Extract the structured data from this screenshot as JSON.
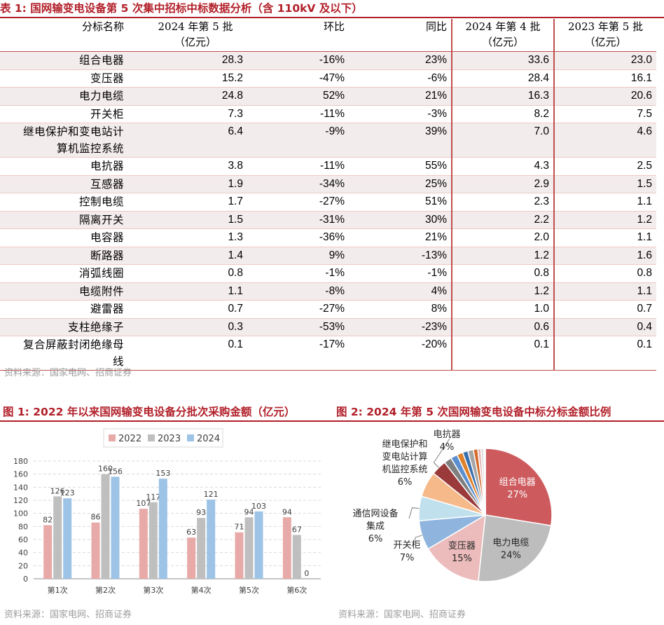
{
  "table1": {
    "title": "表 1: 国网输变电设备第 5 次集中招标中标数据分析（含 110kV 及以下）",
    "headers": {
      "name": "分标名称",
      "c1_line1": "2024 年第 5 批",
      "c1_line2": "（亿元）",
      "c2": "环比",
      "c3": "同比",
      "c4_line1": "2024 年第 4 批",
      "c4_line2": "（亿元）",
      "c5_line1": "2023 年第 5 批",
      "c5_line2": "（亿元）"
    },
    "rows": [
      {
        "name": "组合电器",
        "v2024b5": "28.3",
        "hb": "-16%",
        "tb": "23%",
        "v2024b4": "33.6",
        "v2023b5": "23.0"
      },
      {
        "name": "变压器",
        "v2024b5": "15.2",
        "hb": "-47%",
        "tb": "-6%",
        "v2024b4": "28.4",
        "v2023b5": "16.1"
      },
      {
        "name": "电力电缆",
        "v2024b5": "24.8",
        "hb": "52%",
        "tb": "21%",
        "v2024b4": "16.3",
        "v2023b5": "20.6"
      },
      {
        "name": "开关柜",
        "v2024b5": "7.3",
        "hb": "-11%",
        "tb": "-3%",
        "v2024b4": "8.2",
        "v2023b5": "7.5"
      },
      {
        "name": "继电保护和变电站计",
        "name2": "算机监控系统",
        "v2024b5": "6.4",
        "hb": "-9%",
        "tb": "39%",
        "v2024b4": "7.0",
        "v2023b5": "4.6"
      },
      {
        "name": "电抗器",
        "v2024b5": "3.8",
        "hb": "-11%",
        "tb": "55%",
        "v2024b4": "4.3",
        "v2023b5": "2.5"
      },
      {
        "name": "互感器",
        "v2024b5": "1.9",
        "hb": "-34%",
        "tb": "25%",
        "v2024b4": "2.9",
        "v2023b5": "1.5"
      },
      {
        "name": "控制电缆",
        "v2024b5": "1.7",
        "hb": "-27%",
        "tb": "51%",
        "v2024b4": "2.3",
        "v2023b5": "1.1"
      },
      {
        "name": "隔离开关",
        "v2024b5": "1.5",
        "hb": "-31%",
        "tb": "30%",
        "v2024b4": "2.2",
        "v2023b5": "1.2"
      },
      {
        "name": "电容器",
        "v2024b5": "1.3",
        "hb": "-36%",
        "tb": "21%",
        "v2024b4": "2.0",
        "v2023b5": "1.1"
      },
      {
        "name": "断路器",
        "v2024b5": "1.4",
        "hb": "9%",
        "tb": "-13%",
        "v2024b4": "1.2",
        "v2023b5": "1.6"
      },
      {
        "name": "消弧线圈",
        "v2024b5": "0.8",
        "hb": "-1%",
        "tb": "-1%",
        "v2024b4": "0.8",
        "v2023b5": "0.8"
      },
      {
        "name": "电缆附件",
        "v2024b5": "1.1",
        "hb": "-8%",
        "tb": "4%",
        "v2024b4": "1.2",
        "v2023b5": "1.1"
      },
      {
        "name": "避雷器",
        "v2024b5": "0.7",
        "hb": "-27%",
        "tb": "8%",
        "v2024b4": "1.0",
        "v2023b5": "0.7"
      },
      {
        "name": "支柱绝缘子",
        "v2024b5": "0.3",
        "hb": "-53%",
        "tb": "-23%",
        "v2024b4": "0.6",
        "v2023b5": "0.4"
      },
      {
        "name": "复合屏蔽封闭绝缘母",
        "name2": "线",
        "v2024b5": "0.1",
        "hb": "-17%",
        "tb": "-20%",
        "v2024b4": "0.1",
        "v2023b5": "0.1"
      }
    ],
    "source": "资料来源：国家电网、招商证券"
  },
  "fig1": {
    "title": "图 1: 2022 年以来国网输变电设备分批次采购金额（亿元）",
    "source": "资料来源：国家电网、招商证券",
    "colors": {
      "2022": "#e8aaa8",
      "2023": "#bfbfbf",
      "2024": "#9dc3e6"
    }
  },
  "fig2": {
    "title": "图 2: 2024 年第 5 次国网输变电设备中标分标金额比例",
    "source": "资料来源：国家电网、招商证券"
  },
  "chart_data": [
    {
      "type": "bar",
      "title": "2022 年以来国网输变电设备分批次采购金额（亿元）",
      "categories": [
        "第1次",
        "第2次",
        "第3次",
        "第4次",
        "第5次",
        "第6次"
      ],
      "series": [
        {
          "name": "2022",
          "values": [
            82,
            86,
            107,
            63,
            71,
            94
          ]
        },
        {
          "name": "2023",
          "values": [
            126,
            160,
            117,
            93,
            94,
            67
          ]
        },
        {
          "name": "2024",
          "values": [
            123,
            156,
            153,
            121,
            103,
            0
          ]
        }
      ],
      "value_labels": [
        [
          "82",
          "86",
          "107",
          "63",
          "71",
          "94"
        ],
        [
          "126",
          "160",
          "117",
          "93",
          "94",
          "67"
        ],
        [
          "123",
          "156",
          "153",
          "121",
          "103",
          "0"
        ]
      ],
      "ylim": [
        0,
        180
      ],
      "yticks": [
        "0",
        "20",
        "40",
        "60",
        "80",
        "100",
        "120",
        "140",
        "160",
        "180"
      ],
      "xlabel": "",
      "ylabel": "",
      "legend": "top",
      "grid": true
    },
    {
      "type": "pie",
      "title": "2024 年第 5 次国网输变电设备中标分标金额比例",
      "slices": [
        {
          "label": "组合电器",
          "pct_label": "27%",
          "value": 28.3,
          "color": "#cd5b5e"
        },
        {
          "label": "电力电缆",
          "pct_label": "24%",
          "value": 24.8,
          "color": "#bdbdbd"
        },
        {
          "label": "变压器",
          "pct_label": "15%",
          "value": 15.2,
          "color": "#ecbcbc"
        },
        {
          "label": "开关柜",
          "pct_label": "7%",
          "value": 7.3,
          "color": "#8fb5df"
        },
        {
          "label": "通信网设备集成",
          "label_l1": "通信网设备",
          "label_l2": "集成",
          "pct_label": "6%",
          "value": 6.1,
          "color": "#bfe0ec"
        },
        {
          "label": "继电保护和变电站计算机监控系统",
          "label_l1": "继电保护和",
          "label_l2": "变电站计算",
          "label_l3": "机监控系统",
          "pct_label": "6%",
          "value": 6.4,
          "color": "#f5b98a"
        },
        {
          "label": "电抗器",
          "pct_label": "4%",
          "value": 3.8,
          "color": "#9a3a3a"
        },
        {
          "label": "",
          "value": 1.9,
          "color": "#7f7f7f"
        },
        {
          "label": "",
          "value": 1.7,
          "color": "#5b8fcf"
        },
        {
          "label": "",
          "value": 1.5,
          "color": "#e0812a"
        },
        {
          "label": "",
          "value": 1.3,
          "color": "#3a6fae"
        },
        {
          "label": "",
          "value": 1.4,
          "color": "#a5a5a5"
        },
        {
          "label": "",
          "value": 1.1,
          "color": "#d46b2c"
        },
        {
          "label": "",
          "value": 0.8,
          "color": "#e6b8b7"
        },
        {
          "label": "",
          "value": 0.7,
          "color": "#dddddd"
        },
        {
          "label": "",
          "value": 0.3,
          "color": "#c6d9f1"
        },
        {
          "label": "",
          "value": 0.1,
          "color": "#fbd4b4"
        }
      ]
    }
  ]
}
